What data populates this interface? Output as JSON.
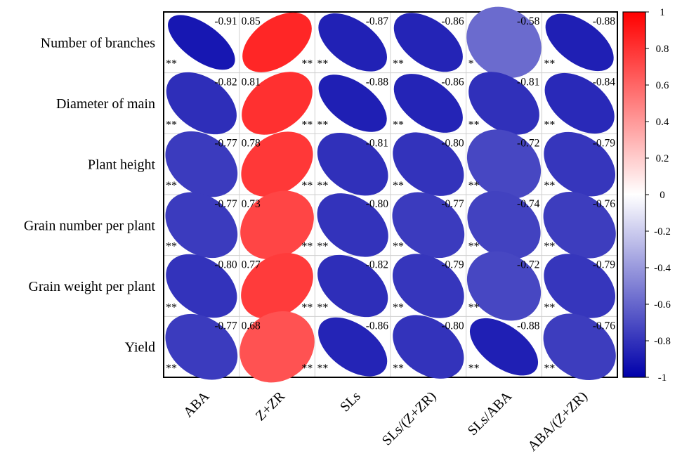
{
  "chart_data": {
    "type": "heatmap",
    "rows": [
      "Number of branches",
      "Diameter of main",
      "Plant height",
      "Grain number per plant",
      "Grain weight per plant",
      "Yield"
    ],
    "columns": [
      "ABA",
      "Z+ZR",
      "SLs",
      "SLs/(Z+ZR)",
      "SLs/ABA",
      "ABA/(Z+ZR)"
    ],
    "values": [
      [
        -0.91,
        0.85,
        -0.87,
        -0.86,
        -0.58,
        -0.88
      ],
      [
        -0.82,
        0.81,
        -0.88,
        -0.86,
        -0.81,
        -0.84
      ],
      [
        -0.77,
        0.78,
        -0.81,
        -0.8,
        -0.72,
        -0.79
      ],
      [
        -0.77,
        0.73,
        -0.8,
        -0.77,
        -0.74,
        -0.76
      ],
      [
        -0.8,
        0.77,
        -0.82,
        -0.79,
        -0.72,
        -0.79
      ],
      [
        -0.77,
        0.68,
        -0.86,
        -0.8,
        -0.88,
        -0.76
      ]
    ],
    "value_labels": [
      [
        "-0.91",
        "0.85",
        "-0.87",
        "-0.86",
        "-0.58",
        "-0.88"
      ],
      [
        "-0.82",
        "0.81",
        "-0.88",
        "-0.86",
        "-0.81",
        "-0.84"
      ],
      [
        "-0.77",
        "0.78",
        "-0.81",
        "-0.80",
        "-0.72",
        "-0.79"
      ],
      [
        "-0.77",
        "0.73",
        "-0.80",
        "-0.77",
        "-0.74",
        "-0.76"
      ],
      [
        "-0.80",
        "0.77",
        "-0.82",
        "-0.79",
        "-0.72",
        "-0.79"
      ],
      [
        "-0.77",
        "0.68",
        "-0.86",
        "-0.80",
        "-0.88",
        "-0.76"
      ]
    ],
    "significance": [
      [
        "**",
        "**",
        "**",
        "**",
        "*",
        "**"
      ],
      [
        "**",
        "**",
        "**",
        "**",
        "**",
        "**"
      ],
      [
        "**",
        "**",
        "**",
        "**",
        "**",
        "**"
      ],
      [
        "**",
        "**",
        "**",
        "**",
        "**",
        "**"
      ],
      [
        "**",
        "**",
        "**",
        "**",
        "**",
        "**"
      ],
      [
        "**",
        "**",
        "**",
        "**",
        "**",
        "**"
      ]
    ],
    "mark": "ellipse",
    "colorbar": {
      "range": [
        -1,
        1
      ],
      "ticks": [
        "1",
        "0.8",
        "0.6",
        "0.4",
        "0.2",
        "0",
        "-0.2",
        "-0.4",
        "-0.6",
        "-0.8",
        "-1"
      ],
      "tick_values": [
        1,
        0.8,
        0.6,
        0.4,
        0.2,
        0,
        -0.2,
        -0.4,
        -0.6,
        -0.8,
        -1
      ],
      "colors": {
        "negative": "#0000aa",
        "zero": "#ffffff",
        "positive": "#ff0000"
      }
    },
    "grid": true,
    "legend_position": "right"
  }
}
